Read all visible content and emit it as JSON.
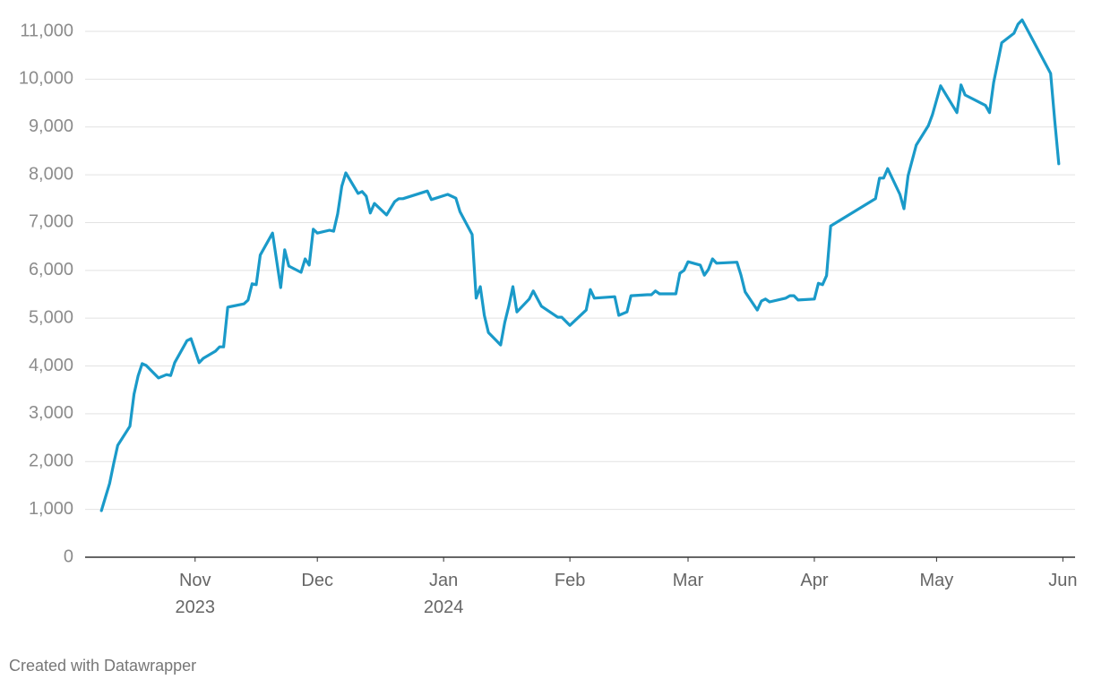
{
  "chart_data": {
    "type": "line",
    "footer": "Created with Datawrapper",
    "x": [
      -23,
      -22,
      -21,
      -20,
      -19,
      -16,
      -15,
      -14,
      -13,
      -12,
      -9,
      -7,
      -6,
      -5,
      -2,
      -1,
      1,
      2,
      5,
      6,
      7,
      8,
      12,
      13,
      14,
      15,
      16,
      19,
      21,
      22,
      23,
      26,
      27,
      28,
      29,
      30,
      33,
      34,
      35,
      36,
      37,
      40,
      41,
      42,
      43,
      44,
      47,
      49,
      50,
      51,
      57,
      58,
      62,
      64,
      65,
      68,
      69,
      70,
      71,
      72,
      75,
      76,
      77,
      78,
      79,
      82,
      83,
      85,
      89,
      90,
      92,
      96,
      97,
      98,
      103,
      104,
      106,
      107,
      111,
      112,
      113,
      114,
      118,
      119,
      120,
      121,
      124,
      125,
      126,
      127,
      128,
      133,
      134,
      135,
      138,
      139,
      140,
      141,
      145,
      146,
      147,
      148,
      152,
      153,
      154,
      155,
      156,
      167,
      168,
      169,
      170,
      173,
      174,
      175,
      177,
      180,
      181,
      183,
      187,
      188,
      189,
      194,
      195,
      196,
      198,
      201,
      202,
      203,
      210,
      211,
      212
    ],
    "series": [
      {
        "color": "#1a9ac9",
        "values": [
          975,
          1256,
          1540,
          1950,
          2340,
          2740,
          3410,
          3790,
          4050,
          4010,
          3750,
          3820,
          3800,
          4070,
          4530,
          4570,
          4070,
          4160,
          4310,
          4400,
          4400,
          5230,
          5300,
          5380,
          5720,
          5700,
          6320,
          6780,
          5640,
          6430,
          6090,
          5960,
          6240,
          6110,
          6860,
          6780,
          6840,
          6820,
          7180,
          7760,
          8040,
          7610,
          7650,
          7550,
          7200,
          7400,
          7160,
          7440,
          7500,
          7500,
          7660,
          7480,
          7590,
          7510,
          7230,
          6750,
          5420,
          5660,
          5060,
          4700,
          4440,
          4910,
          5250,
          5660,
          5130,
          5400,
          5570,
          5250,
          5020,
          5020,
          4850,
          5170,
          5600,
          5420,
          5450,
          5060,
          5130,
          5470,
          5490,
          5490,
          5570,
          5510,
          5510,
          5940,
          6000,
          6180,
          6110,
          5900,
          6020,
          6240,
          6150,
          6170,
          5900,
          5550,
          5170,
          5360,
          5400,
          5340,
          5420,
          5470,
          5470,
          5380,
          5400,
          5730,
          5700,
          5890,
          6930,
          7500,
          7930,
          7930,
          8130,
          7590,
          7290,
          7980,
          8620,
          9030,
          9260,
          9860,
          9300,
          9880,
          9670,
          9450,
          9300,
          9930,
          10760,
          10960,
          11150,
          11240,
          10120,
          9130,
          8230
        ]
      }
    ],
    "xlim": [
      -27,
      216
    ],
    "xticks": [
      {
        "value": 0,
        "label": "Nov\n2023"
      },
      {
        "value": 30,
        "label": "Dec"
      },
      {
        "value": 61,
        "label": "Jan\n2024"
      },
      {
        "value": 92,
        "label": "Feb"
      },
      {
        "value": 121,
        "label": "Mar"
      },
      {
        "value": 152,
        "label": "Apr"
      },
      {
        "value": 182,
        "label": "May"
      },
      {
        "value": 213,
        "label": "Jun"
      }
    ],
    "ylim": [
      0,
      11000
    ],
    "yticks": [
      0,
      {
        "value": 1000,
        "label": "1,000"
      },
      {
        "value": 2000,
        "label": "2,000"
      },
      {
        "value": 3000,
        "label": "3,000"
      },
      {
        "value": 4000,
        "label": "4,000"
      },
      {
        "value": 5000,
        "label": "5,000"
      },
      {
        "value": 6000,
        "label": "6,000"
      },
      {
        "value": 7000,
        "label": "7,000"
      },
      {
        "value": 8000,
        "label": "8,000"
      },
      {
        "value": 9000,
        "label": "9,000"
      },
      {
        "value": 10000,
        "label": "10,000"
      },
      {
        "value": 11000,
        "label": "11,000"
      }
    ],
    "grid": true
  }
}
